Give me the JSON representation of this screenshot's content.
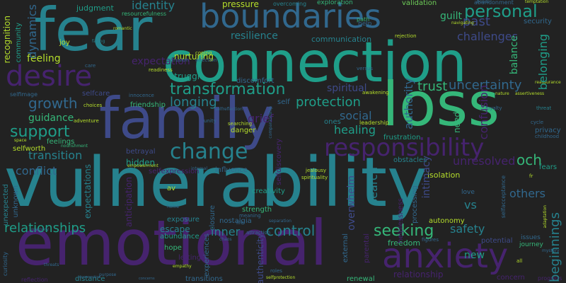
{
  "palette": {
    "background": "#222222",
    "purple": "#46236e",
    "indigo": "#3e4a89",
    "blue": "#31688e",
    "teal": "#26828e",
    "cyan": "#1f9e89",
    "green": "#35b779",
    "lime": "#6ece58",
    "yellow": "#b5de2b"
  },
  "words": [
    "vulnerability",
    "emotional",
    "connection",
    "loss",
    "fear",
    "family",
    "boundaries",
    "desire",
    "anxiety",
    "responsibility",
    "change",
    "transformation",
    "longing",
    "support",
    "growth",
    "uncertainty",
    "personal",
    "past",
    "security",
    "trust",
    "protection",
    "healing",
    "social",
    "resilience",
    "communication",
    "identity",
    "judgment",
    "resourcefulness",
    "transition",
    "guidance",
    "conflict",
    "relationships",
    "control",
    "seeking",
    "safety",
    "inner",
    "nostalgia",
    "escape",
    "abundance",
    "hope",
    "letting",
    "distance",
    "transitions",
    "reflection",
    "renewal",
    "new",
    "relationship",
    "freedom",
    "potential",
    "concern",
    "progress",
    "beginnings",
    "others",
    "och",
    "unresolved",
    "fears",
    "isolation",
    "obstacles",
    "processing",
    "intimacy",
    "vs",
    "search",
    "helplessness",
    "overwhelm",
    "creativity",
    "strength",
    "closure",
    "authenticity",
    "parental",
    "selfdiscovery",
    "authority",
    "spiritual",
    "need",
    "frustration",
    "leadership",
    "influence",
    "danger",
    "hidden",
    "betrayal",
    "anticipation",
    "expectations",
    "exposure",
    "feelings",
    "selfworth",
    "feeling",
    "dynamics",
    "community",
    "recognition",
    "selfimage",
    "selfcare",
    "friendship",
    "struggle",
    "readiness",
    "nurturing",
    "pressure",
    "overcoming",
    "exploration",
    "validation",
    "abandonment",
    "guilt",
    "challenges",
    "confusion",
    "unexpected",
    "unknown",
    "curiosity",
    "grief",
    "discomfort",
    "selfexpression",
    "autonomy",
    "memory",
    "joy",
    "expectation",
    "ones",
    "av",
    "privacy",
    "figures",
    "issues",
    "journey",
    "innocence",
    "threat",
    "romantic",
    "facing",
    "path",
    "rejection",
    "help",
    "balance",
    "adventure",
    "nourishment",
    "empowerment",
    "coping",
    "intrusion",
    "affection",
    "care",
    "versus",
    "bonds",
    "temptation",
    "navigating",
    "childhood",
    "nature",
    "reassurance",
    "loyalty",
    "unity",
    "jealousy",
    "spirituality",
    "internal",
    "selfacceptance",
    "adaptation",
    "mystery",
    "searching",
    "companionship",
    "awakening",
    "selfreflection",
    "self",
    "cycle",
    "life",
    "meaning",
    "attraction",
    "separation",
    "roles",
    "external",
    "chaos",
    "empathy",
    "threats",
    "choices",
    "purpose",
    "fr",
    "belonging",
    "experiences",
    "love",
    "space",
    "selfprotection",
    "assertiveness",
    "reconnection",
    "home",
    "all",
    "concerns",
    "overwhelm"
  ]
}
